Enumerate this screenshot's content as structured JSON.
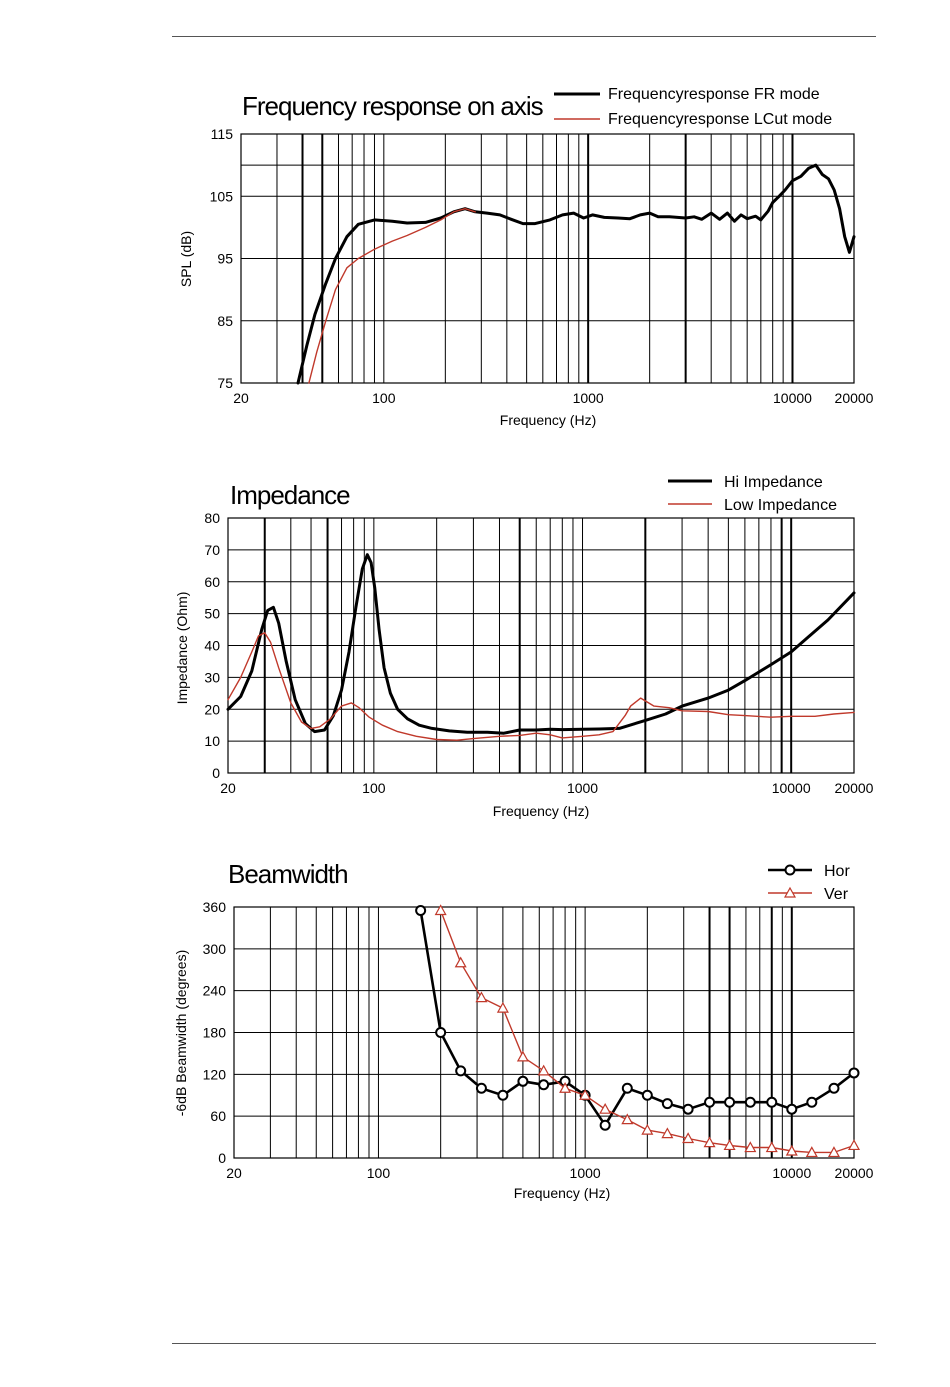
{
  "chart_data": [
    {
      "type": "line",
      "title": "Frequency response on axis",
      "xlabel": "Frequency (Hz)",
      "ylabel": "SPL (dB)",
      "xscale": "log",
      "xlim": [
        20,
        20000
      ],
      "ylim": [
        75,
        115
      ],
      "x_ticks": [
        20,
        100,
        1000,
        10000,
        20000
      ],
      "x_tick_labels": [
        "20",
        "100",
        "1000",
        "10000",
        "20000"
      ],
      "y_ticks": [
        75,
        85,
        95,
        105,
        115
      ],
      "y_tick_labels": [
        "75",
        "85",
        "95",
        "105",
        "115"
      ],
      "bold_lines_x": [
        40,
        50,
        1000,
        3000,
        10000
      ],
      "bold_lines_y": [
        110
      ],
      "grid": true,
      "legend_position": "top-right",
      "series": [
        {
          "name": "Frequencyresponse FR mode",
          "color": "#000000",
          "width": 3,
          "x": [
            38,
            42,
            46,
            52,
            58,
            66,
            75,
            90,
            110,
            130,
            160,
            190,
            220,
            250,
            280,
            320,
            370,
            420,
            480,
            550,
            650,
            750,
            850,
            950,
            1050,
            1200,
            1400,
            1600,
            1800,
            2000,
            2200,
            2500,
            3000,
            3300,
            3600,
            4000,
            4400,
            4800,
            5200,
            5600,
            6000,
            6600,
            7000,
            7600,
            8000,
            8600,
            9200,
            10000,
            11000,
            12000,
            13000,
            14000,
            15000,
            16000,
            17000,
            18000,
            19000,
            20000
          ],
          "y": [
            75,
            81,
            86,
            91,
            95,
            98.5,
            100.5,
            101.2,
            101,
            100.7,
            100.8,
            101.5,
            102.5,
            103,
            102.5,
            102.3,
            102,
            101.3,
            100.6,
            100.6,
            101.2,
            102,
            102.3,
            101.5,
            102,
            101.6,
            101.5,
            101.4,
            102,
            102.3,
            101.7,
            101.7,
            101.5,
            101.7,
            101.3,
            102.3,
            101.3,
            102.3,
            101,
            102,
            101.4,
            101.8,
            101.2,
            102.6,
            104,
            105,
            106,
            107.5,
            108.2,
            109.5,
            110,
            108.5,
            107.8,
            106,
            103,
            98.5,
            96,
            98.5
          ]
        },
        {
          "name": "Frequencyresponse LCut mode",
          "color": "#c0392b",
          "width": 1.4,
          "x": [
            43,
            47,
            52,
            58,
            66,
            75,
            90,
            110,
            130,
            160,
            190,
            220,
            250,
            280
          ],
          "y": [
            75,
            80,
            85,
            90,
            93.5,
            95,
            96.5,
            97.8,
            98.7,
            100,
            101.2,
            102.5,
            103,
            102.5
          ]
        }
      ]
    },
    {
      "type": "line",
      "title": "Impedance",
      "xlabel": "Frequency (Hz)",
      "ylabel": "Impedance (Ohm)",
      "xscale": "log",
      "xlim": [
        20,
        20000
      ],
      "ylim": [
        0,
        80
      ],
      "x_ticks": [
        20,
        100,
        1000,
        10000,
        20000
      ],
      "x_tick_labels": [
        "20",
        "100",
        "1000",
        "10000",
        "20000"
      ],
      "y_ticks": [
        0,
        10,
        20,
        30,
        40,
        50,
        60,
        70,
        80
      ],
      "y_tick_labels": [
        "0",
        "10",
        "20",
        "30",
        "40",
        "50",
        "60",
        "70",
        "80"
      ],
      "bold_lines_x": [
        30,
        60,
        500,
        2000,
        9000,
        10000
      ],
      "grid": true,
      "legend_position": "top-right",
      "series": [
        {
          "name": "Hi Impedance",
          "color": "#000000",
          "width": 3,
          "x": [
            20,
            23,
            26,
            29,
            31,
            33,
            35,
            38,
            42,
            47,
            52,
            58,
            64,
            70,
            76,
            82,
            88,
            93,
            97,
            101,
            106,
            112,
            120,
            130,
            145,
            165,
            190,
            230,
            280,
            350,
            420,
            500,
            600,
            700,
            800,
            1000,
            1200,
            1500,
            2000,
            2500,
            3000,
            4000,
            5000,
            6000,
            8000,
            10000,
            12000,
            15000,
            20000
          ],
          "y": [
            20,
            24,
            32,
            45,
            51,
            52,
            47,
            35,
            23,
            15.5,
            13,
            13.5,
            18,
            26,
            38,
            52,
            64,
            68.5,
            66,
            58,
            45,
            33,
            25,
            20,
            17,
            15,
            14,
            13.2,
            12.8,
            12.8,
            12.5,
            13.5,
            13.5,
            13.7,
            13.6,
            13.7,
            13.8,
            14,
            16.5,
            18.5,
            21,
            23.5,
            26,
            29,
            34,
            38,
            42.5,
            48,
            56.5
          ]
        },
        {
          "name": "Low Impedance",
          "color": "#c0392b",
          "width": 1.4,
          "x": [
            20,
            23,
            26,
            28,
            30,
            32,
            35,
            40,
            45,
            50,
            55,
            62,
            70,
            78,
            85,
            95,
            110,
            130,
            160,
            200,
            250,
            300,
            400,
            500,
            600,
            700,
            800,
            1000,
            1200,
            1400,
            1600,
            1700,
            1900,
            2200,
            2600,
            3000,
            4000,
            5000,
            6000,
            8000,
            10000,
            13000,
            16000,
            20000
          ],
          "y": [
            23,
            30,
            38,
            43,
            44,
            41,
            33,
            22,
            16,
            14,
            14.5,
            17,
            21,
            22,
            20.5,
            17.5,
            15,
            13,
            11.5,
            10.5,
            10.3,
            10.8,
            11.5,
            11.8,
            12.5,
            12,
            11,
            11.5,
            12,
            13,
            18,
            21,
            23.5,
            21,
            20.5,
            19.5,
            19.3,
            18.3,
            18,
            17.5,
            17.8,
            17.8,
            18.5,
            19
          ]
        }
      ]
    },
    {
      "type": "line",
      "title": "Beamwidth",
      "xlabel": "Frequency (Hz)",
      "ylabel": "-6dB Beamwidth (degrees)",
      "xscale": "log",
      "xlim": [
        20,
        20000
      ],
      "ylim": [
        0,
        360
      ],
      "x_ticks": [
        20,
        100,
        1000,
        10000,
        20000
      ],
      "x_tick_labels": [
        "20",
        "100",
        "1000",
        "10000",
        "20000"
      ],
      "y_ticks": [
        0,
        60,
        120,
        180,
        240,
        300,
        360
      ],
      "y_tick_labels": [
        "0",
        "60",
        "120",
        "180",
        "240",
        "300",
        "360"
      ],
      "bold_lines_x": [
        4000,
        5000,
        8000,
        10000
      ],
      "grid": true,
      "legend_position": "top-right",
      "series": [
        {
          "name": "Hor",
          "color": "#000000",
          "width": 2.6,
          "marker": "circle",
          "x": [
            160,
            200,
            250,
            315,
            400,
            500,
            630,
            800,
            1000,
            1250,
            1600,
            2000,
            2500,
            3150,
            4000,
            5000,
            6300,
            8000,
            10000,
            12500,
            16000,
            20000
          ],
          "y": [
            355,
            180,
            125,
            100,
            90,
            110,
            105,
            110,
            90,
            47,
            100,
            90,
            78,
            70,
            80,
            80,
            80,
            80,
            70,
            80,
            100,
            122
          ]
        },
        {
          "name": "Ver",
          "color": "#c0392b",
          "width": 1.4,
          "marker": "triangle",
          "x": [
            200,
            250,
            315,
            400,
            500,
            630,
            800,
            1000,
            1250,
            1600,
            2000,
            2500,
            3150,
            4000,
            5000,
            6300,
            8000,
            10000,
            12500,
            16000,
            20000
          ],
          "y": [
            355,
            280,
            230,
            215,
            145,
            125,
            100,
            90,
            70,
            55,
            40,
            35,
            28,
            22,
            18,
            15,
            15,
            10,
            8,
            8,
            18
          ]
        }
      ]
    }
  ]
}
